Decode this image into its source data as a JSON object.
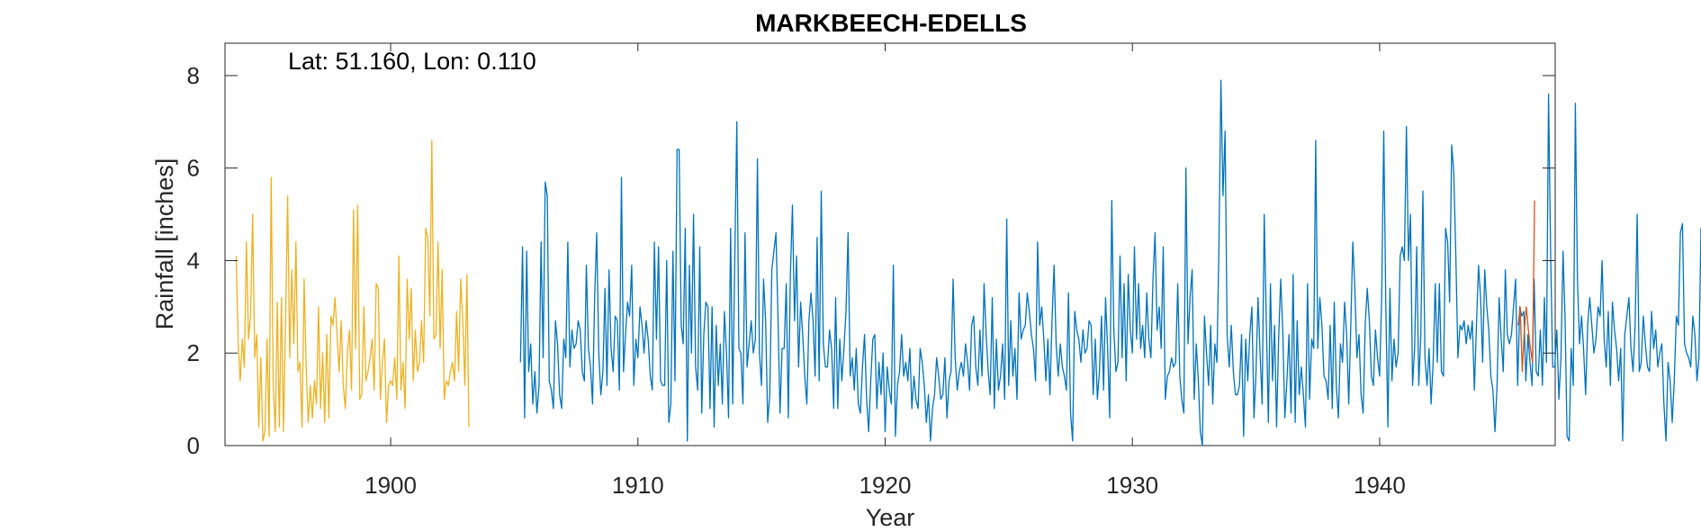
{
  "chart_data": {
    "type": "line",
    "title": "MARKBEECH-EDELLS",
    "xlabel": "Year",
    "ylabel": "Rainfall [inches]",
    "annotation": "Lat: 51.160, Lon: 0.110",
    "xlim": [
      1893.3,
      1947.1
    ],
    "ylim": [
      0,
      8.7
    ],
    "xticks": [
      1900,
      1910,
      1920,
      1930,
      1940
    ],
    "yticks": [
      0,
      2,
      4,
      6,
      8
    ],
    "grid": false,
    "colors": {
      "series1": "#EDB120",
      "series2": "#0072BD",
      "series3": "#D95319"
    },
    "series": [
      {
        "color": "#EDB120",
        "x_start": 1893.75,
        "x_step": 0.08333,
        "values": [
          4.1,
          2.2,
          1.4,
          2.3,
          1.7,
          4.4,
          2.3,
          2.8,
          5.0,
          1.9,
          2.4,
          0.4,
          1.9,
          0.1,
          0.3,
          2.3,
          0.2,
          5.8,
          1.3,
          0.3,
          3.1,
          0.4,
          3.2,
          0.3,
          2.7,
          5.4,
          1.9,
          3.8,
          2.2,
          4.4,
          1.6,
          1.8,
          0.4,
          3.6,
          1.7,
          0.5,
          1.3,
          0.6,
          1.4,
          0.9,
          3.0,
          0.8,
          2.0,
          0.5,
          2.4,
          0.6,
          2.8,
          2.6,
          3.2,
          2.4,
          1.6,
          2.7,
          1.3,
          0.8,
          2.0,
          2.5,
          1.2,
          5.1,
          2.1,
          5.2,
          1.0,
          1.1,
          3.0,
          1.4,
          1.6,
          1.9,
          2.3,
          1.2,
          3.5,
          3.4,
          1.0,
          1.8,
          2.3,
          0.5,
          1.3,
          1.4,
          1.3,
          1.9,
          1.0,
          4.1,
          1.2,
          1.8,
          0.8,
          3.6,
          2.3,
          3.4,
          1.4,
          2.5,
          1.6,
          1.8,
          2.7,
          1.8,
          4.7,
          4.5,
          2.8,
          6.6,
          2.3,
          2.4,
          4.4,
          2.1,
          3.8,
          1.0,
          1.4,
          1.3,
          1.6,
          1.8,
          1.4,
          2.9,
          1.6,
          3.6,
          2.7,
          1.3,
          3.7,
          0.4
        ]
      },
      {
        "color": "#0072BD",
        "x_start": 1905.25,
        "x_step": 0.08333,
        "values": [
          1.8,
          4.3,
          0.6,
          4.2,
          1.6,
          2.2,
          0.9,
          1.6,
          0.7,
          1.3,
          4.4,
          1.9,
          5.7,
          5.4,
          1.4,
          1.2,
          0.8,
          2.7,
          2.2,
          1.1,
          0.8,
          2.3,
          1.9,
          4.4,
          1.7,
          2.5,
          2.1,
          2.2,
          2.7,
          2.5,
          1.6,
          1.4,
          3.9,
          2.1,
          1.7,
          0.9,
          3.2,
          4.6,
          2.0,
          1.1,
          1.6,
          3.4,
          1.3,
          3.8,
          2.1,
          1.6,
          2.8,
          2.7,
          1.2,
          5.8,
          1.6,
          2.4,
          3.1,
          2.8,
          3.9,
          1.3,
          2.3,
          1.9,
          3.0,
          2.6,
          2.0,
          2.7,
          2.3,
          1.5,
          1.2,
          4.4,
          2.3,
          4.3,
          1.4,
          1.3,
          1.3,
          4.0,
          0.5,
          0.9,
          4.2,
          1.4,
          6.4,
          6.4,
          2.6,
          2.2,
          4.7,
          0.1,
          3.9,
          2.0,
          5.0,
          1.7,
          1.2,
          4.3,
          0.7,
          2.4,
          3.1,
          3.0,
          0.8,
          3.0,
          0.4,
          2.6,
          1.3,
          2.2,
          0.9,
          2.9,
          2.0,
          0.6,
          4.7,
          0.9,
          4.0,
          7.0,
          2.1,
          2.0,
          0.9,
          4.6,
          1.7,
          2.2,
          2.7,
          2.0,
          2.3,
          6.2,
          2.0,
          1.3,
          3.6,
          2.7,
          0.5,
          1.1,
          3.8,
          4.2,
          4.6,
          2.8,
          0.7,
          2.1,
          2.1,
          3.5,
          0.6,
          3.7,
          5.2,
          2.7,
          4.1,
          1.7,
          3.1,
          2.4,
          1.5,
          0.9,
          2.7,
          3.3,
          2.7,
          1.5,
          4.5,
          1.4,
          5.5,
          2.2,
          1.7,
          1.7,
          2.5,
          2.1,
          0.8,
          3.2,
          0.8,
          2.3,
          1.4,
          2.1,
          2.9,
          4.6,
          1.5,
          1.9,
          1.2,
          2.1,
          0.9,
          0.7,
          1.7,
          2.4,
          1.0,
          0.3,
          1.4,
          2.3,
          2.4,
          0.8,
          1.8,
          1.1,
          2.0,
          0.3,
          1.7,
          1.2,
          0.9,
          3.9,
          0.2,
          1.3,
          1.6,
          2.4,
          1.5,
          1.8,
          1.4,
          2.1,
          0.8,
          1.5,
          1.0,
          0.8,
          2.1,
          1.8,
          1.3,
          0.5,
          1.1,
          0.1,
          0.8,
          1.1,
          1.9,
          1.5,
          1.0,
          1.1,
          1.9,
          0.6,
          1.4,
          1.6,
          3.6,
          1.9,
          1.2,
          1.6,
          1.8,
          1.5,
          2.2,
          1.8,
          1.2,
          2.6,
          2.8,
          1.7,
          1.3,
          2.5,
          1.5,
          3.5,
          2.4,
          1.6,
          1.1,
          3.2,
          0.8,
          2.3,
          1.2,
          1.5,
          2.2,
          1.0,
          4.9,
          1.3,
          2.7,
          1.5,
          2.1,
          1.0,
          3.3,
          2.3,
          2.5,
          2.6,
          3.3,
          2.9,
          2.4,
          2.1,
          1.4,
          4.4,
          2.6,
          3.0,
          2.3,
          1.4,
          2.3,
          1.1,
          2.7,
          3.9,
          2.2,
          1.5,
          2.2,
          1.7,
          1.5,
          1.2,
          3.3,
          0.7,
          0.1,
          2.9,
          2.5,
          2.3,
          1.8,
          2.5,
          2.0,
          2.1,
          2.7,
          2.6,
          1.1,
          2.3,
          1.0,
          1.6,
          2.8,
          1.2,
          3.2,
          2.1,
          0.6,
          5.3,
          2.5,
          1.6,
          1.8,
          4.1,
          1.9,
          3.5,
          1.4,
          3.7,
          2.5,
          2.0,
          4.3,
          2.3,
          3.5,
          2.1,
          2.6,
          1.9,
          3.3,
          2.3,
          1.9,
          3.6,
          4.6,
          2.5,
          3.0,
          2.1,
          4.3,
          1.0,
          1.5,
          1.6,
          1.9,
          1.7,
          1.8,
          3.5,
          1.5,
          1.0,
          0.7,
          6.0,
          2.2,
          3.2,
          3.8,
          1.0,
          2.2,
          1.4,
          0.3,
          0.0,
          2.8,
          2.0,
          1.3,
          2.6,
          0.9,
          2.2,
          1.8,
          4.2,
          7.9,
          5.4,
          6.8,
          2.4,
          1.7,
          2.6,
          1.6,
          1.1,
          1.1,
          1.3,
          2.4,
          0.2,
          2.3,
          1.4,
          2.4,
          3.0,
          0.6,
          1.6,
          3.2,
          2.0,
          0.9,
          5.0,
          2.7,
          0.5,
          3.5,
          1.4,
          2.6,
          0.4,
          2.3,
          3.6,
          2.5,
          0.6,
          1.4,
          2.4,
          0.7,
          3.7,
          0.5,
          2.7,
          1.1,
          1.7,
          1.1,
          0.4,
          3.5,
          1.0,
          2.3,
          2.1,
          6.6,
          2.1,
          3.2,
          2.6,
          1.5,
          1.4,
          1.0,
          2.6,
          0.8,
          3.1,
          1.3,
          0.6,
          2.2,
          1.8,
          3.1,
          2.4,
          0.9,
          2.6,
          4.4,
          3.4,
          1.9,
          2.4,
          1.1,
          0.7,
          2.6,
          3.4,
          2.7,
          1.5,
          1.3,
          2.5,
          1.9,
          1.5,
          3.2,
          6.8,
          3.0,
          0.4,
          3.4,
          1.4,
          2.3,
          1.7,
          2.0,
          4.1,
          4.3,
          4.0,
          6.9,
          4.0,
          5.0,
          1.3,
          2.1,
          4.3,
          1.3,
          2.4,
          5.5,
          1.9,
          1.3,
          2.1,
          0.9,
          1.8,
          3.5,
          1.8,
          3.5,
          1.6,
          1.5,
          4.7,
          4.4,
          3.1,
          6.5,
          5.9,
          4.1,
          1.9,
          2.6,
          2.5,
          2.7,
          2.2,
          2.6,
          2.3,
          2.7,
          1.2,
          2.6,
          3.9,
          3.2,
          1.8,
          3.8,
          3.0,
          2.5,
          1.5,
          1.2,
          0.3,
          1.3,
          3.2,
          2.3,
          1.6,
          3.8,
          2.4,
          2.2,
          2.4,
          3.0,
          3.6,
          1.3,
          3.0,
          2.8,
          2.9,
          1.4,
          2.4,
          1.8,
          1.3,
          3.6,
          1.6,
          1.5,
          2.5,
          1.3,
          3.2,
          1.8,
          7.6,
          4.2,
          1.7,
          1.7,
          2.5,
          1.0,
          1.9,
          4.2,
          2.8,
          0.2,
          0.1,
          2.1,
          1.3,
          7.4,
          3.6,
          2.2,
          2.8,
          2.1,
          1.1,
          2.6,
          3.2,
          2.6,
          2.0,
          2.3,
          3.0,
          2.8,
          4.0,
          2.3,
          1.7,
          2.9,
          1.3,
          3.1,
          2.5,
          2.1,
          1.4,
          2.1,
          0.1,
          2.4,
          2.8,
          3.2,
          2.1,
          1.6,
          2.6,
          5.0,
          1.6,
          1.8,
          2.8,
          2.2,
          1.7,
          1.6,
          2.9,
          2.1,
          2.5,
          1.7,
          2.0,
          2.2,
          0.9,
          0.1,
          1.8,
          1.4,
          0.5,
          1.4,
          2.8,
          2.6,
          4.6,
          4.8,
          2.2,
          2.0,
          1.9,
          1.7,
          2.8,
          2.4,
          1.4,
          1.9,
          4.7,
          2.1,
          1.6,
          2.7,
          1.7,
          0.3,
          3.8,
          2.4
        ]
      },
      {
        "color": "#D95319",
        "x_start": 1945.6,
        "x_step": 0.0833,
        "values": [
          2.6,
          3.0,
          1.6,
          2.5,
          3.0,
          2.5,
          2.1,
          1.8,
          5.3
        ]
      }
    ]
  }
}
